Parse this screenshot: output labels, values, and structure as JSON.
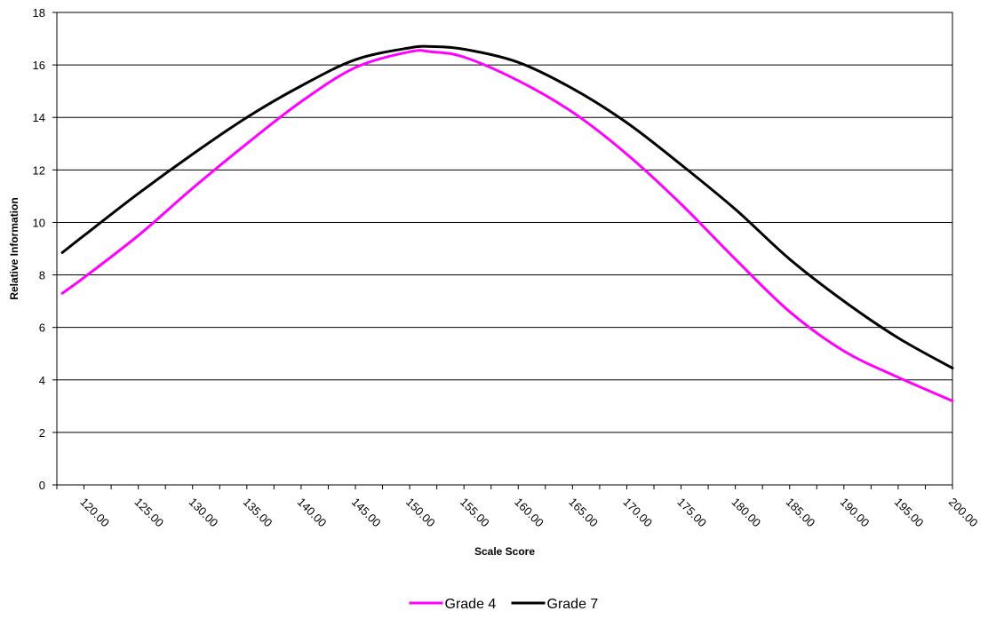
{
  "chart_data": {
    "type": "line",
    "xlabel": "Scale Score",
    "ylabel": "Relative Information",
    "xlim": [
      117.5,
      200
    ],
    "ylim": [
      0,
      18
    ],
    "y_ticks": [
      0,
      2,
      4,
      6,
      8,
      10,
      12,
      14,
      16,
      18
    ],
    "x_ticks": [
      "120.00",
      "125.00",
      "130.00",
      "135.00",
      "140.00",
      "145.00",
      "150.00",
      "155.00",
      "160.00",
      "165.00",
      "170.00",
      "175.00",
      "180.00",
      "185.00",
      "190.00",
      "195.00",
      "200.00"
    ],
    "x_tick_values": [
      120,
      125,
      130,
      135,
      140,
      145,
      150,
      155,
      160,
      165,
      170,
      175,
      180,
      185,
      190,
      195,
      200
    ],
    "grid": "horizontal",
    "legend_position": "bottom",
    "x": [
      118,
      120,
      125,
      130,
      135,
      140,
      145,
      150,
      152,
      155,
      160,
      165,
      170,
      175,
      180,
      185,
      190,
      195,
      200
    ],
    "series": [
      {
        "name": "Grade 4",
        "color": "#ff00ff",
        "values": [
          7.3,
          7.9,
          9.5,
          11.3,
          13.0,
          14.6,
          15.9,
          16.5,
          16.5,
          16.3,
          15.4,
          14.2,
          12.6,
          10.7,
          8.6,
          6.6,
          5.1,
          4.1,
          3.2
        ]
      },
      {
        "name": "Grade 7",
        "color": "#000000",
        "values": [
          8.85,
          9.5,
          11.1,
          12.6,
          14.0,
          15.2,
          16.2,
          16.65,
          16.7,
          16.6,
          16.1,
          15.1,
          13.8,
          12.2,
          10.5,
          8.6,
          7.0,
          5.6,
          4.45
        ]
      }
    ]
  }
}
